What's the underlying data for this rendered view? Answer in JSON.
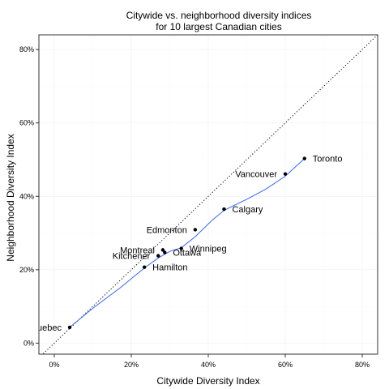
{
  "chart_data": {
    "type": "scatter",
    "title_lines": [
      "Citywide vs. neighborhood diversity indices",
      "for 10 largest Canadian cities"
    ],
    "xlabel": "Citywide Diversity Index",
    "ylabel": "Neighborhood Diversity Index",
    "xlim": [
      -0.04,
      0.84
    ],
    "ylim": [
      -0.03,
      0.84
    ],
    "x_ticks": [
      0,
      0.2,
      0.4,
      0.6,
      0.8
    ],
    "x_tick_labels": [
      "0%",
      "20%",
      "40%",
      "60%",
      "80%"
    ],
    "y_ticks": [
      0,
      0.2,
      0.4,
      0.6,
      0.8
    ],
    "y_tick_labels": [
      "0%",
      "20%",
      "40%",
      "60%",
      "80%"
    ],
    "reference_line": "y = x (dotted)",
    "smooth_color": "#3366ff",
    "grid": true,
    "points": [
      {
        "label": "Quebec",
        "x": 0.04,
        "y": 0.043,
        "label_side": "left"
      },
      {
        "label": "Hamilton",
        "x": 0.234,
        "y": 0.207,
        "label_side": "right"
      },
      {
        "label": "Kitchener",
        "x": 0.27,
        "y": 0.238,
        "label_side": "left"
      },
      {
        "label": "Montreal",
        "x": 0.282,
        "y": 0.254,
        "label_side": "left"
      },
      {
        "label": "Ottawa",
        "x": 0.287,
        "y": 0.247,
        "label_side": "right"
      },
      {
        "label": "Winnipeg",
        "x": 0.33,
        "y": 0.258,
        "label_side": "right"
      },
      {
        "label": "Edmonton",
        "x": 0.366,
        "y": 0.309,
        "label_side": "left"
      },
      {
        "label": "Calgary",
        "x": 0.441,
        "y": 0.365,
        "label_side": "right"
      },
      {
        "label": "Vancouver",
        "x": 0.6,
        "y": 0.461,
        "label_side": "left"
      },
      {
        "label": "Toronto",
        "x": 0.65,
        "y": 0.503,
        "label_side": "right"
      }
    ],
    "smooth": [
      {
        "x": 0.04,
        "y": 0.043
      },
      {
        "x": 0.1,
        "y": 0.095
      },
      {
        "x": 0.17,
        "y": 0.15
      },
      {
        "x": 0.234,
        "y": 0.205
      },
      {
        "x": 0.27,
        "y": 0.232
      },
      {
        "x": 0.3,
        "y": 0.25
      },
      {
        "x": 0.33,
        "y": 0.26
      },
      {
        "x": 0.366,
        "y": 0.29
      },
      {
        "x": 0.41,
        "y": 0.335
      },
      {
        "x": 0.441,
        "y": 0.362
      },
      {
        "x": 0.5,
        "y": 0.392
      },
      {
        "x": 0.55,
        "y": 0.42
      },
      {
        "x": 0.6,
        "y": 0.455
      },
      {
        "x": 0.65,
        "y": 0.503
      }
    ]
  }
}
